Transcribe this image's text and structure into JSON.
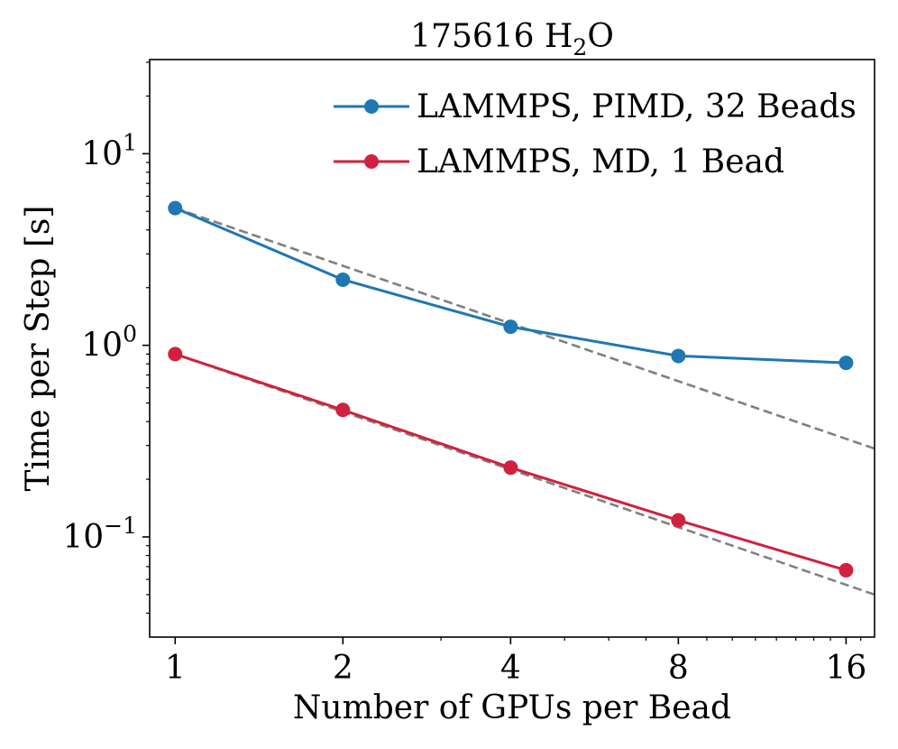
{
  "chart_data": {
    "type": "line",
    "title": "175616 H",
    "title_subscript": "2",
    "title_suffix": "O",
    "xlabel": "Number of GPUs per Bead",
    "ylabel": "Time per Step [s]",
    "x_scale": "log2",
    "y_scale": "log10",
    "x": [
      1,
      2,
      4,
      8,
      16
    ],
    "x_tick_labels": [
      "1",
      "2",
      "4",
      "8",
      "16"
    ],
    "xlim": [
      0.9,
      18
    ],
    "ylim": [
      0.03,
      31
    ],
    "y_ticks": [
      {
        "value": 10,
        "base": "10",
        "exp": "1"
      },
      {
        "value": 1,
        "base": "10",
        "exp": "0"
      },
      {
        "value": 0.1,
        "base": "10",
        "exp": "−1"
      }
    ],
    "series": [
      {
        "name": "LAMMPS, PIMD, 32 Beads",
        "color": "#1f77b4",
        "values": [
          5.2,
          2.2,
          1.25,
          0.88,
          0.81
        ]
      },
      {
        "name": "LAMMPS, MD, 1 Bead",
        "color": "#d0213f",
        "values": [
          0.9,
          0.46,
          0.23,
          0.122,
          0.067
        ]
      }
    ],
    "reference_lines": [
      {
        "style": "dashed",
        "color": "#808080",
        "start_value": 5.2,
        "slope": -1
      },
      {
        "style": "dashed",
        "color": "#808080",
        "start_value": 0.9,
        "slope": -1
      }
    ],
    "grid": false,
    "legend_position": "upper right"
  }
}
